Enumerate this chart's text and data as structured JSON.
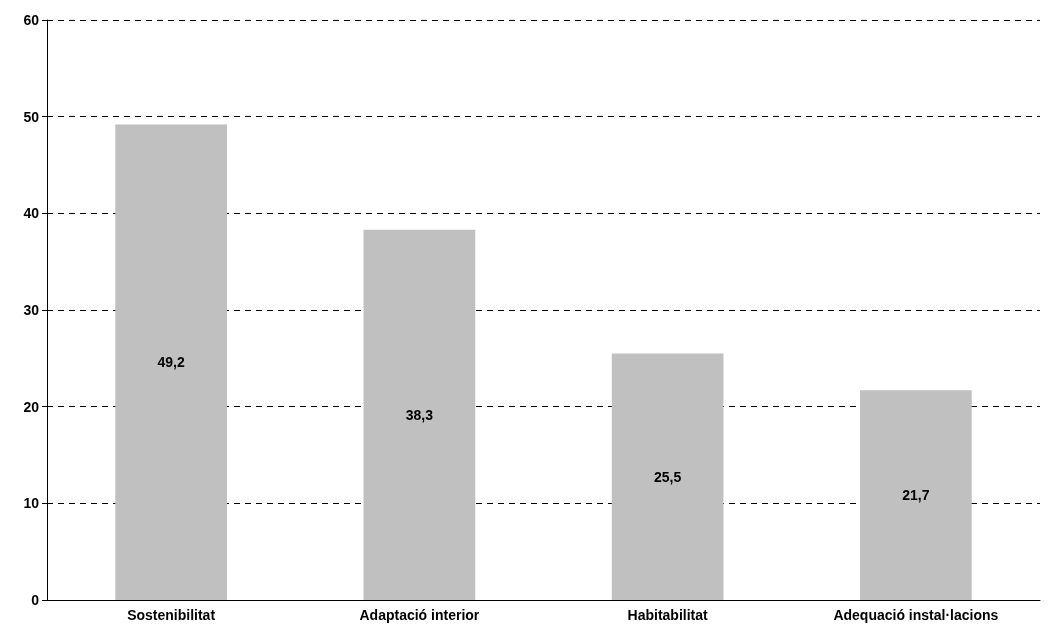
{
  "chart_data": {
    "type": "bar",
    "categories": [
      "Sostenibilitat",
      "Adaptació interior",
      "Habitabilitat",
      "Adequació instal·lacions"
    ],
    "values": [
      49.2,
      38.3,
      25.5,
      21.7
    ],
    "value_labels": [
      "49,2",
      "38,3",
      "25,5",
      "21,7"
    ],
    "color": "#c0c0c0",
    "ylim": [
      0,
      60
    ],
    "yticks": [
      0,
      10,
      20,
      30,
      40,
      50,
      60
    ],
    "grid": "y"
  }
}
